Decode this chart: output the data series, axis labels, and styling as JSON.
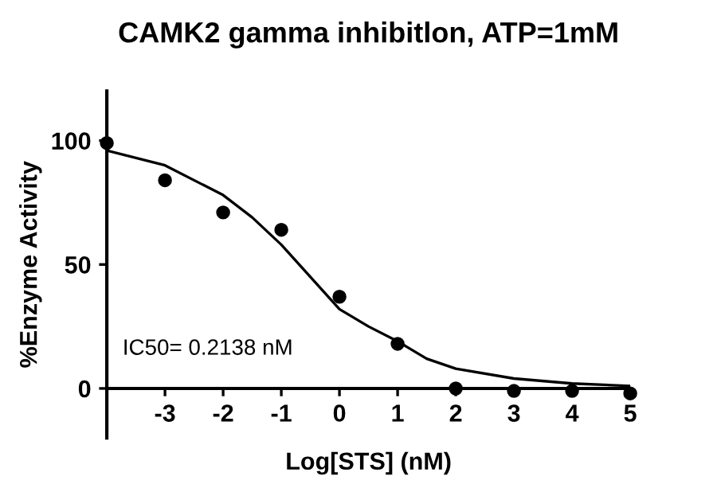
{
  "chart_data": {
    "type": "scatter",
    "title": "CAMK2 gamma inhibitlon, ATP=1mM",
    "xlabel": "Log[STS] (nM)",
    "ylabel": "%Enzyme Activity",
    "xlim": [
      -4,
      5
    ],
    "xticks": [
      -3,
      -2,
      -1,
      0,
      1,
      2,
      3,
      4,
      5
    ],
    "ylim": [
      -20,
      120
    ],
    "yticks": [
      0,
      50,
      100
    ],
    "annotations": [
      "IC50= 0.2138 nM"
    ],
    "marker": "circle",
    "grid": false,
    "legend": false,
    "series": [
      {
        "color": "#000000",
        "x": [
          -4,
          -3,
          -2,
          -1,
          0,
          1,
          2,
          3,
          4,
          5
        ],
        "values": [
          99,
          84,
          71,
          64,
          37,
          18,
          0,
          -1,
          -1,
          -2
        ]
      },
      {
        "type": "line",
        "color": "#000000",
        "marker": "none",
        "line_style": "solid",
        "x": [
          -4,
          -3,
          -2,
          -1.5,
          -1,
          -0.5,
          0,
          0.5,
          1,
          1.5,
          2,
          3,
          4,
          5
        ],
        "values": [
          96,
          90,
          78,
          69,
          58,
          45,
          32,
          25,
          19,
          12,
          8,
          4,
          2,
          1
        ]
      }
    ]
  }
}
